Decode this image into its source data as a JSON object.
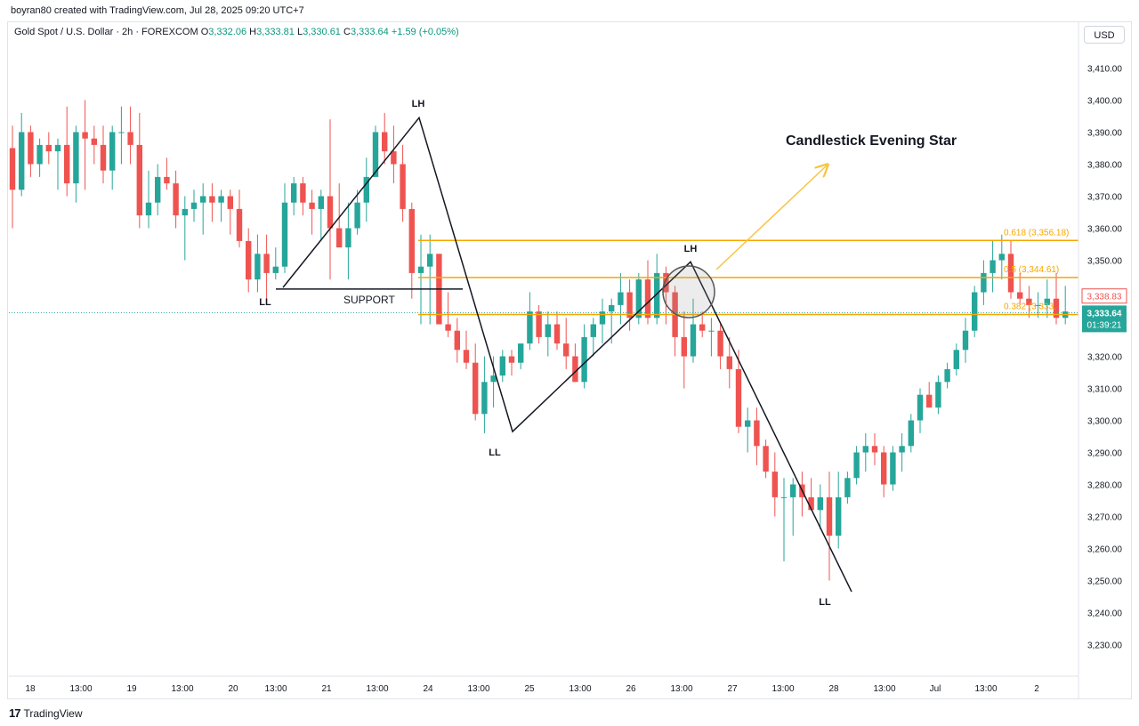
{
  "header": {
    "credit": "boyran80 created with TradingView.com, Jul 28, 2025 09:20 UTC+7",
    "symbol": "Gold Spot / U.S. Dollar · 2h · FOREXCOM",
    "open_label": "O",
    "open": "3,332.06",
    "high_label": "H",
    "high": "3,333.81",
    "low_label": "L",
    "low": "3,330.61",
    "close_label": "C",
    "close": "3,333.64",
    "change": "+1.59 (+0.05%)"
  },
  "currency": "USD",
  "footer": {
    "brand": "TradingView"
  },
  "colors": {
    "up": "#26a69a",
    "down": "#ef5350",
    "fib": "#f7a600",
    "arrow": "#f9c440",
    "line": "#131722"
  },
  "chart_data": {
    "type": "candlestick",
    "title": "Gold Spot / U.S. Dollar · 2h · FOREXCOM",
    "ylim": [
      3220,
      3420
    ],
    "y_ticks": [
      "3,230.00",
      "3,240.00",
      "3,250.00",
      "3,260.00",
      "3,270.00",
      "3,280.00",
      "3,290.00",
      "3,300.00",
      "3,310.00",
      "3,320.00",
      "3,330.00",
      "3,340.00",
      "3,350.00",
      "3,360.00",
      "3,370.00",
      "3,380.00",
      "3,390.00",
      "3,400.00",
      "3,410.00"
    ],
    "x_ticks": [
      "18",
      "13:00",
      "19",
      "13:00",
      "20",
      "13:00",
      "21",
      "13:00",
      "24",
      "13:00",
      "25",
      "13:00",
      "26",
      "13:00",
      "27",
      "13:00",
      "28",
      "13:00",
      "Jul",
      "13:00",
      "2"
    ],
    "candles": [
      [
        3385,
        3392,
        3360,
        3372
      ],
      [
        3372,
        3396,
        3370,
        3390
      ],
      [
        3390,
        3392,
        3376,
        3380
      ],
      [
        3380,
        3388,
        3376,
        3386
      ],
      [
        3386,
        3390,
        3380,
        3384
      ],
      [
        3384,
        3388,
        3372,
        3386
      ],
      [
        3386,
        3398,
        3370,
        3374
      ],
      [
        3374,
        3392,
        3368,
        3390
      ],
      [
        3390,
        3400,
        3372,
        3388
      ],
      [
        3388,
        3392,
        3380,
        3386
      ],
      [
        3386,
        3392,
        3374,
        3378
      ],
      [
        3378,
        3392,
        3372,
        3390
      ],
      [
        3390,
        3398,
        3380,
        3390
      ],
      [
        3390,
        3398,
        3380,
        3386
      ],
      [
        3386,
        3396,
        3360,
        3364
      ],
      [
        3364,
        3378,
        3360,
        3368
      ],
      [
        3368,
        3380,
        3364,
        3376
      ],
      [
        3376,
        3382,
        3372,
        3374
      ],
      [
        3374,
        3378,
        3360,
        3364
      ],
      [
        3364,
        3370,
        3350,
        3366
      ],
      [
        3366,
        3372,
        3362,
        3368
      ],
      [
        3368,
        3374,
        3358,
        3370
      ],
      [
        3370,
        3374,
        3362,
        3368
      ],
      [
        3368,
        3372,
        3362,
        3370
      ],
      [
        3370,
        3372,
        3358,
        3366
      ],
      [
        3366,
        3372,
        3354,
        3356
      ],
      [
        3356,
        3360,
        3340,
        3344
      ],
      [
        3344,
        3358,
        3340,
        3352
      ],
      [
        3352,
        3358,
        3338,
        3346
      ],
      [
        3346,
        3354,
        3344,
        3348
      ],
      [
        3348,
        3374,
        3346,
        3368
      ],
      [
        3368,
        3376,
        3364,
        3374
      ],
      [
        3374,
        3376,
        3364,
        3368
      ],
      [
        3368,
        3372,
        3358,
        3366
      ],
      [
        3366,
        3372,
        3356,
        3370
      ],
      [
        3370,
        3394,
        3344,
        3360
      ],
      [
        3360,
        3374,
        3354,
        3354
      ],
      [
        3354,
        3368,
        3344,
        3360
      ],
      [
        3360,
        3372,
        3358,
        3368
      ],
      [
        3368,
        3382,
        3362,
        3376
      ],
      [
        3376,
        3392,
        3376,
        3390
      ],
      [
        3390,
        3396,
        3380,
        3384
      ],
      [
        3384,
        3392,
        3374,
        3380
      ],
      [
        3380,
        3386,
        3362,
        3366
      ],
      [
        3366,
        3368,
        3338,
        3346
      ],
      [
        3346,
        3358,
        3330,
        3348
      ],
      [
        3348,
        3358,
        3330,
        3352
      ],
      [
        3352,
        3352,
        3330,
        3330
      ],
      [
        3330,
        3340,
        3326,
        3328
      ],
      [
        3328,
        3332,
        3318,
        3322
      ],
      [
        3322,
        3328,
        3316,
        3318
      ],
      [
        3318,
        3324,
        3300,
        3302
      ],
      [
        3302,
        3320,
        3296,
        3312
      ],
      [
        3312,
        3320,
        3304,
        3314
      ],
      [
        3314,
        3322,
        3312,
        3320
      ],
      [
        3320,
        3322,
        3314,
        3318
      ],
      [
        3318,
        3324,
        3316,
        3324
      ],
      [
        3324,
        3340,
        3322,
        3334
      ],
      [
        3334,
        3336,
        3324,
        3326
      ],
      [
        3326,
        3334,
        3320,
        3330
      ],
      [
        3330,
        3334,
        3322,
        3324
      ],
      [
        3324,
        3332,
        3316,
        3320
      ],
      [
        3320,
        3324,
        3312,
        3312
      ],
      [
        3312,
        3330,
        3310,
        3326
      ],
      [
        3326,
        3332,
        3320,
        3330
      ],
      [
        3330,
        3338,
        3324,
        3334
      ],
      [
        3334,
        3338,
        3324,
        3336
      ],
      [
        3336,
        3346,
        3330,
        3340
      ],
      [
        3340,
        3344,
        3328,
        3332
      ],
      [
        3332,
        3346,
        3330,
        3344
      ],
      [
        3344,
        3350,
        3330,
        3332
      ],
      [
        3332,
        3352,
        3330,
        3346
      ],
      [
        3346,
        3348,
        3330,
        3340
      ],
      [
        3340,
        3342,
        3320,
        3326
      ],
      [
        3326,
        3334,
        3310,
        3320
      ],
      [
        3320,
        3338,
        3318,
        3330
      ],
      [
        3330,
        3334,
        3326,
        3328
      ],
      [
        3328,
        3332,
        3320,
        3328
      ],
      [
        3328,
        3330,
        3316,
        3320
      ],
      [
        3320,
        3326,
        3310,
        3316
      ],
      [
        3316,
        3322,
        3296,
        3298
      ],
      [
        3298,
        3304,
        3290,
        3300
      ],
      [
        3300,
        3304,
        3286,
        3292
      ],
      [
        3292,
        3294,
        3282,
        3284
      ],
      [
        3284,
        3290,
        3270,
        3276
      ],
      [
        3276,
        3282,
        3256,
        3276
      ],
      [
        3276,
        3282,
        3264,
        3280
      ],
      [
        3280,
        3284,
        3270,
        3276
      ],
      [
        3276,
        3282,
        3272,
        3272
      ],
      [
        3272,
        3280,
        3266,
        3276
      ],
      [
        3276,
        3284,
        3250,
        3264
      ],
      [
        3264,
        3284,
        3260,
        3276
      ],
      [
        3276,
        3284,
        3274,
        3282
      ],
      [
        3282,
        3292,
        3280,
        3290
      ],
      [
        3290,
        3296,
        3284,
        3292
      ],
      [
        3292,
        3296,
        3286,
        3290
      ],
      [
        3290,
        3292,
        3276,
        3280
      ],
      [
        3280,
        3292,
        3278,
        3290
      ],
      [
        3290,
        3296,
        3284,
        3292
      ],
      [
        3292,
        3302,
        3290,
        3300
      ],
      [
        3300,
        3310,
        3296,
        3308
      ],
      [
        3308,
        3312,
        3304,
        3304
      ],
      [
        3304,
        3314,
        3302,
        3312
      ],
      [
        3312,
        3318,
        3310,
        3316
      ],
      [
        3316,
        3324,
        3314,
        3322
      ],
      [
        3322,
        3332,
        3318,
        3328
      ],
      [
        3328,
        3342,
        3326,
        3340
      ],
      [
        3340,
        3350,
        3336,
        3346
      ],
      [
        3346,
        3356,
        3340,
        3350
      ],
      [
        3350,
        3358,
        3344,
        3352
      ],
      [
        3352,
        3356,
        3338,
        3340
      ],
      [
        3340,
        3346,
        3336,
        3338
      ],
      [
        3338,
        3342,
        3332,
        3336
      ],
      [
        3336,
        3340,
        3332,
        3336
      ],
      [
        3336,
        3344,
        3332,
        3338
      ],
      [
        3338,
        3346,
        3330,
        3332
      ],
      [
        3332,
        3342,
        3330,
        3334
      ]
    ],
    "fibonacci": [
      {
        "label": "0.618 (3,356.18)",
        "value": 3356.18
      },
      {
        "label": "0.5 (3,344.61)",
        "value": 3344.61
      },
      {
        "label": "0.382 (3,333.",
        "value": 3333.04
      }
    ],
    "support": {
      "label": "SUPPORT",
      "value": 3341
    },
    "swing_points": [
      {
        "label": "LL",
        "value": 3341.5
      },
      {
        "label": "LH",
        "value": 3394.5
      },
      {
        "label": "LL",
        "value": 3296.5
      },
      {
        "label": "LH",
        "value": 3349.5
      },
      {
        "label": "LL",
        "value": 3246.5
      }
    ],
    "annotation": "Candlestick Evening Star",
    "price_labels": {
      "last": "3,333.64",
      "countdown": "01:39:21",
      "marker": "3,338.83"
    },
    "current_price": 3333.64
  }
}
